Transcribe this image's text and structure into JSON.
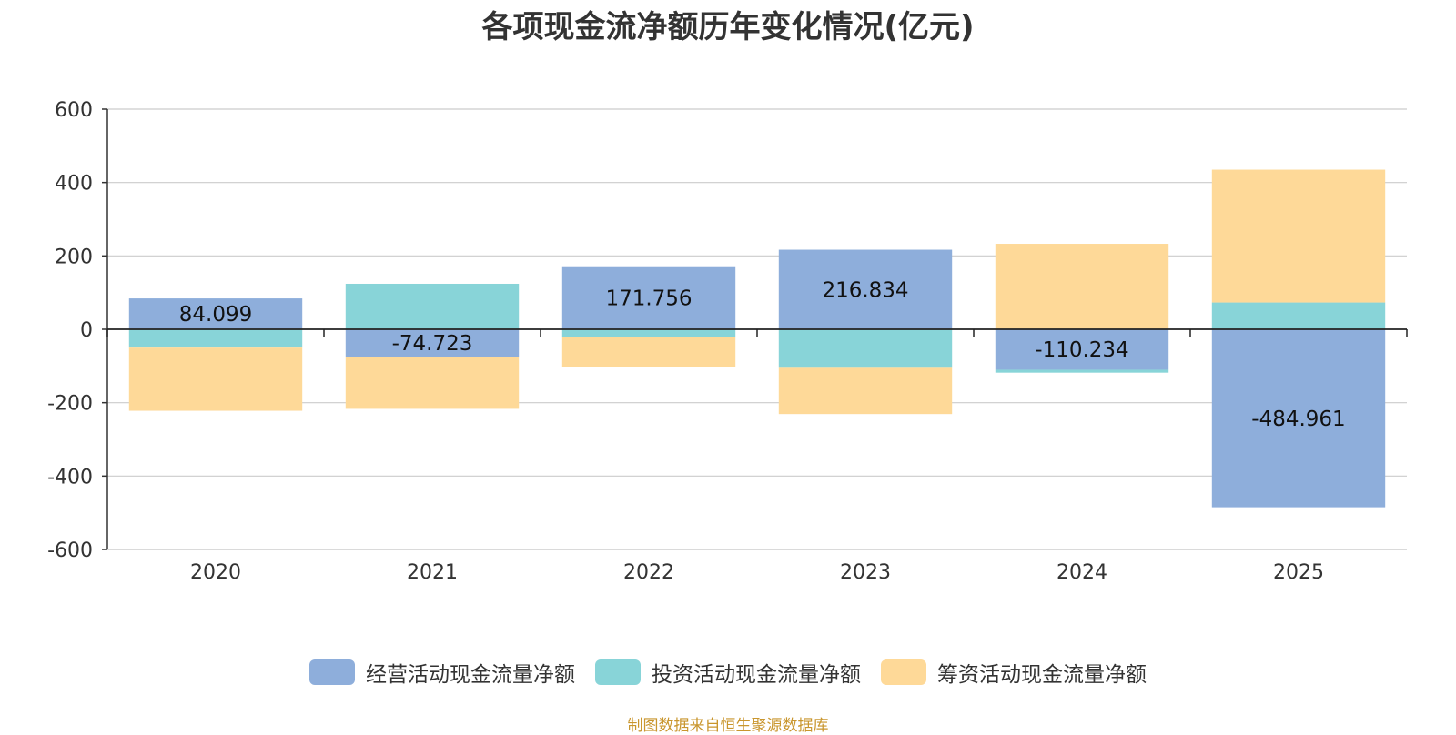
{
  "chart_data": {
    "type": "bar",
    "stacked": true,
    "title": "各项现金流净额历年变化情况(亿元)",
    "categories": [
      "2020",
      "2021",
      "2022",
      "2023",
      "2024",
      "2025"
    ],
    "series": [
      {
        "name": "经营活动现金流量净额",
        "color": "#8eaedb",
        "values": [
          84.099,
          -74.723,
          171.756,
          216.834,
          -110.234,
          -484.961
        ],
        "labels": [
          "84.099",
          "-74.723",
          "171.756",
          "216.834",
          "-110.234",
          "-484.961"
        ]
      },
      {
        "name": "投资活动现金流量净额",
        "color": "#88d4d8",
        "values": [
          -50,
          124,
          -20,
          -105,
          -8,
          73
        ]
      },
      {
        "name": "筹资活动现金流量净额",
        "color": "#fed998",
        "values": [
          -172,
          -142,
          -82,
          -126,
          233,
          362
        ]
      }
    ],
    "ylim": [
      -600,
      600
    ],
    "yticks": [
      "600",
      "400",
      "200",
      "0",
      "-200",
      "-400",
      "-600"
    ],
    "yticks_values": [
      600,
      400,
      200,
      0,
      -200,
      -400,
      -600
    ],
    "grid": true,
    "legend_position": "bottom"
  },
  "source_note": "制图数据来自恒生聚源数据库"
}
